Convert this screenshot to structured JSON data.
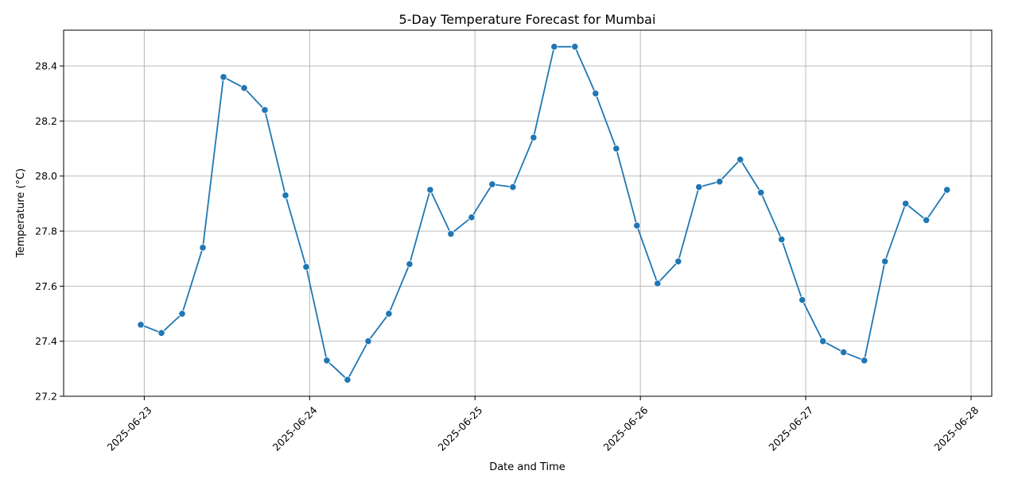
{
  "chart_data": {
    "type": "line",
    "title": "5-Day Temperature Forecast for Mumbai",
    "xlabel": "Date and Time",
    "ylabel": "Temperature (°C)",
    "x_ticks": [
      "2025-06-23",
      "2025-06-24",
      "2025-06-25",
      "2025-06-26",
      "2025-06-27",
      "2025-06-28"
    ],
    "y_ticks": [
      "27.2",
      "27.4",
      "27.6",
      "27.8",
      "28.0",
      "28.2",
      "28.4"
    ],
    "ylim": [
      27.2,
      28.53
    ],
    "xlim": [
      "2025-06-22 12:18",
      "2025-06-28 03:00"
    ],
    "grid": true,
    "color": "#1f77b4",
    "series": [
      {
        "x": [
          "2025-06-22 23:30",
          "2025-06-23 02:30",
          "2025-06-23 05:30",
          "2025-06-23 08:30",
          "2025-06-23 11:30",
          "2025-06-23 14:30",
          "2025-06-23 17:30",
          "2025-06-23 20:30",
          "2025-06-23 23:30",
          "2025-06-24 02:30",
          "2025-06-24 05:30",
          "2025-06-24 08:30",
          "2025-06-24 11:30",
          "2025-06-24 14:30",
          "2025-06-24 17:30",
          "2025-06-24 20:30",
          "2025-06-24 23:30",
          "2025-06-25 02:30",
          "2025-06-25 05:30",
          "2025-06-25 08:30",
          "2025-06-25 11:30",
          "2025-06-25 14:30",
          "2025-06-25 17:30",
          "2025-06-25 20:30",
          "2025-06-25 23:30",
          "2025-06-26 02:30",
          "2025-06-26 05:30",
          "2025-06-26 08:30",
          "2025-06-26 11:30",
          "2025-06-26 14:30",
          "2025-06-26 17:30",
          "2025-06-26 20:30",
          "2025-06-26 23:30",
          "2025-06-27 02:30",
          "2025-06-27 05:30",
          "2025-06-27 08:30",
          "2025-06-27 11:30",
          "2025-06-27 14:30",
          "2025-06-27 17:30",
          "2025-06-27 20:30"
        ],
        "values": [
          27.46,
          27.43,
          27.5,
          27.74,
          28.36,
          28.32,
          28.24,
          27.93,
          27.67,
          27.33,
          27.26,
          27.4,
          27.5,
          27.68,
          27.95,
          27.79,
          27.85,
          27.97,
          27.96,
          28.14,
          28.47,
          28.47,
          28.3,
          28.1,
          27.82,
          27.61,
          27.69,
          27.96,
          27.98,
          28.06,
          27.94,
          27.77,
          27.55,
          27.4,
          27.36,
          27.33,
          27.69,
          27.9,
          27.84,
          27.95
        ]
      }
    ]
  }
}
